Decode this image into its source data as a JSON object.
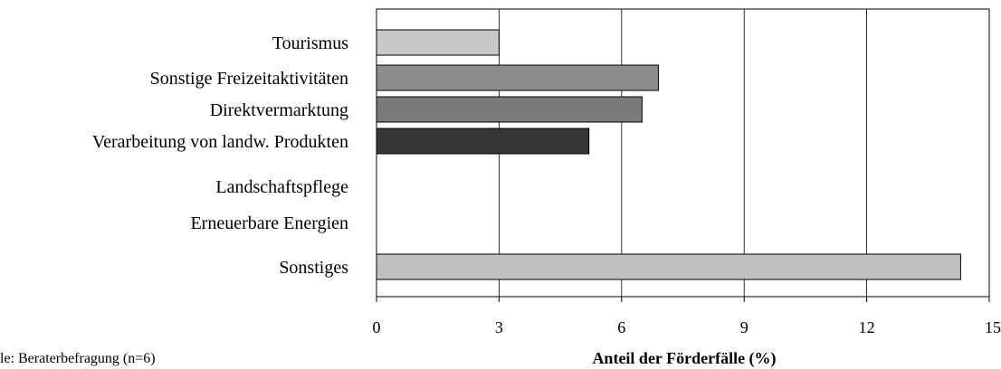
{
  "chart_data": {
    "type": "bar",
    "orientation": "horizontal",
    "categories": [
      "Tourismus",
      "Sonstige Freizeitaktivitäten",
      "Direktvermarktung",
      "Verarbeitung von landw. Produkten",
      "Landschaftspflege",
      "Erneuerbare Energien",
      "Sonstiges"
    ],
    "values": [
      3.0,
      6.9,
      6.5,
      5.2,
      0,
      0,
      14.3
    ],
    "bar_colors": [
      "#c8c8c8",
      "#8c8c8c",
      "#7a7a7a",
      "#363636",
      "#c0c0c0",
      "#c0c0c0",
      "#c0c0c0"
    ],
    "xlabel": "Anteil der Förderfälle (%)",
    "xlim": [
      0,
      15
    ],
    "xticks": [
      0,
      3,
      6,
      9,
      12,
      15
    ],
    "grid": true,
    "legend": "none",
    "source_note": "le: Beraterbefragung (n=6)"
  }
}
